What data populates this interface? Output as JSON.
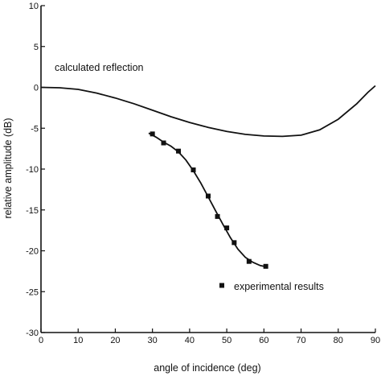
{
  "chart_data": {
    "type": "line",
    "xlabel": "angle of incidence (deg)",
    "ylabel": "relative amplitude (dB)",
    "xlim": [
      0,
      90
    ],
    "ylim": [
      -30,
      10
    ],
    "xticks": [
      0,
      10,
      20,
      30,
      40,
      50,
      60,
      70,
      80,
      90
    ],
    "yticks": [
      10,
      5,
      0,
      -5,
      -10,
      -15,
      -20,
      -25,
      -30
    ],
    "grid": false,
    "series": [
      {
        "name": "calculated reflection",
        "style": "line",
        "x": [
          0,
          5,
          10,
          15,
          20,
          25,
          30,
          35,
          40,
          45,
          50,
          55,
          60,
          65,
          70,
          75,
          80,
          85,
          88,
          90
        ],
        "y": [
          0,
          -0.05,
          -0.25,
          -0.7,
          -1.3,
          -2.0,
          -2.8,
          -3.6,
          -4.3,
          -4.9,
          -5.4,
          -5.75,
          -5.95,
          -6.0,
          -5.85,
          -5.2,
          -3.9,
          -2.0,
          -0.6,
          0.2
        ]
      },
      {
        "name": "experimental results",
        "style": "line+markers",
        "x": [
          30,
          33,
          37,
          41,
          45,
          47.5,
          50,
          52,
          56,
          60.5
        ],
        "y": [
          -5.7,
          -6.8,
          -7.8,
          -10.1,
          -13.3,
          -15.8,
          -17.2,
          -19.0,
          -21.3,
          -21.9
        ],
        "curve_x": [
          29,
          31,
          33,
          35,
          37,
          39,
          41,
          43,
          45,
          47,
          49,
          51,
          53,
          55,
          57,
          59,
          61
        ],
        "curve_y": [
          -5.6,
          -6.1,
          -6.7,
          -7.2,
          -7.9,
          -8.9,
          -10.2,
          -11.7,
          -13.4,
          -15.1,
          -16.8,
          -18.4,
          -19.8,
          -20.8,
          -21.4,
          -21.8,
          -22.0
        ]
      }
    ],
    "annotations": {
      "calculated_label": "calculated reflection",
      "experimental_label": "experimental results"
    }
  }
}
